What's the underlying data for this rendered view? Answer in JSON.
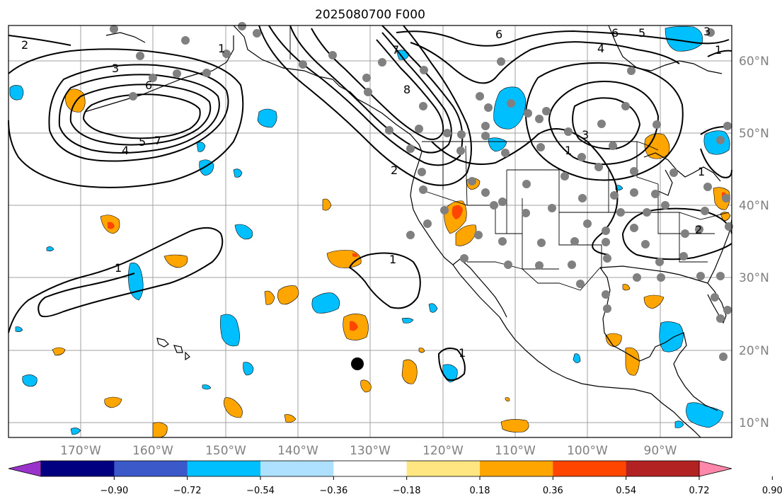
{
  "title": "2025080700 F000",
  "lat_labels": [
    "60°N",
    "50°N",
    "40°N",
    "30°N",
    "20°N",
    "10°N"
  ],
  "lon_labels": [
    "170°W",
    "160°W",
    "150°W",
    "140°W",
    "130°W",
    "120°W",
    "110°W",
    "100°W",
    "90°W"
  ],
  "colorbar": {
    "ticks": [
      "−0.90",
      "−0.72",
      "−0.54",
      "−0.36",
      "−0.18",
      "0.18",
      "0.36",
      "0.54",
      "0.72",
      "0.90"
    ],
    "colors": [
      "#9933cc",
      "#000080",
      "#3b59c9",
      "#00bfff",
      "#aee0ff",
      "#ffffff",
      "#ffe680",
      "#ffa500",
      "#ff4500",
      "#b22222",
      "#ff88aa"
    ]
  },
  "contour_labels": [
    "2",
    "3",
    "6",
    "4",
    "5",
    "7",
    "1",
    "1",
    "1",
    "1",
    "6",
    "6",
    "5",
    "4",
    "3",
    "8",
    "7",
    "3",
    "1",
    "2",
    "1",
    "1",
    "2"
  ],
  "colors": {
    "negative_fill": "#00bfff",
    "positive_fill": "#ffa500",
    "strong_positive_fill": "#ff4500",
    "station_marker": "#808080",
    "storm_marker": "#000000",
    "grid": "#a0a0a0"
  }
}
